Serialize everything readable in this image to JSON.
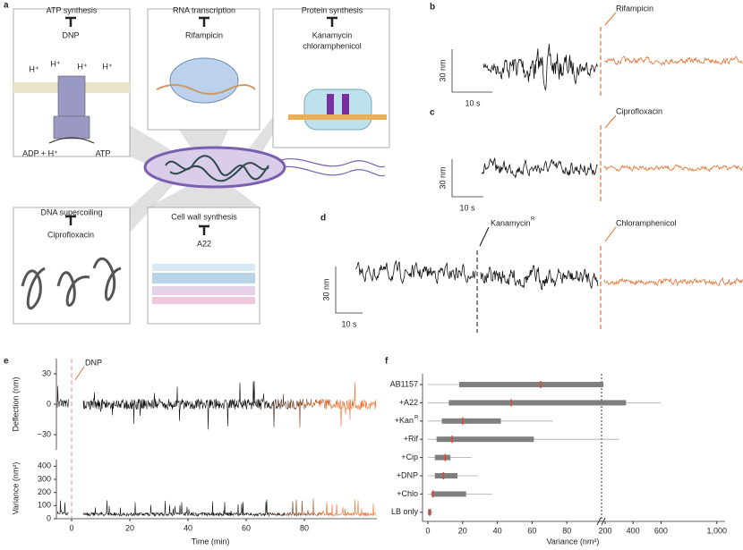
{
  "panel_a": {
    "label": "a",
    "atp": {
      "title": "ATP synthesis",
      "drug": "DNP",
      "proton": "H⁺",
      "reactants": "ADP + H⁺",
      "product": "ATP"
    },
    "rna": {
      "title": "RNA transcription",
      "drug": "Rifampicin"
    },
    "protein": {
      "title": "Protein synthesis",
      "drug_1": "Kanamycin",
      "drug_2": "chloramphenicol"
    },
    "dna": {
      "title": "DNA supercoiling",
      "drug": "Ciprofloxacin"
    },
    "wall": {
      "title": "Cell wall synthesis",
      "drug": "A22"
    }
  },
  "panel_b": {
    "label": "b",
    "scale_y": "30 nm",
    "scale_x": "10 s",
    "drug": "Rifampicin"
  },
  "panel_c": {
    "label": "c",
    "scale_y": "30 nm",
    "scale_x": "10 s",
    "drug": "Ciprofloxacin"
  },
  "panel_d": {
    "label": "d",
    "scale_y": "30 nm",
    "scale_x": "10 s",
    "drug_1": "Kanamycin",
    "drug_1_sup": "R",
    "drug_2": "Chloramphenicol"
  },
  "panel_e": {
    "label": "e",
    "drug": "DNP",
    "xlabel": "Time (min)",
    "xlim": [
      -5,
      105
    ],
    "xticks": [
      0,
      20,
      40,
      60,
      80
    ],
    "deflection": {
      "ylabel": "Deflection (nm)",
      "ylim": [
        -45,
        45
      ],
      "yticks": [
        30,
        0,
        {
          "value": -30,
          "label": "−30"
        }
      ]
    },
    "variance": {
      "ylabel": "Variance (nm²)",
      "ylim": [
        0,
        450
      ],
      "yticks": [
        0,
        100,
        200,
        300,
        400
      ]
    }
  },
  "panel_f": {
    "label": "f",
    "type": "box",
    "xlabel": "Variance (nm²)",
    "box_color": "#7f7f7f",
    "median_color": "#e8452c",
    "categories": [
      "AB1157",
      "+A22",
      "+Kan",
      "+Rif",
      "+Cip",
      "+DNP",
      "+Chlo",
      "LB only"
    ],
    "kan_superscript": "R",
    "xticks": [
      0,
      20,
      40,
      60,
      80,
      200,
      400,
      600,
      {
        "value": 1000,
        "label": "1,000"
      }
    ],
    "boxes": [
      {
        "whisker_low": 0,
        "q1": 18,
        "median": 65,
        "q3": 150,
        "whisker_high": 180
      },
      {
        "whisker_low": 0,
        "q1": 12,
        "median": 48,
        "q3": 350,
        "whisker_high": 600
      },
      {
        "whisker_low": 0,
        "q1": 8,
        "median": 20,
        "q3": 42,
        "whisker_high": 72
      },
      {
        "whisker_low": 0,
        "q1": 5,
        "median": 14,
        "q3": 61,
        "whisker_high": 300
      },
      {
        "whisker_low": 0,
        "q1": 4,
        "median": 10,
        "q3": 13,
        "whisker_high": 25
      },
      {
        "whisker_low": 0,
        "q1": 4,
        "median": 9,
        "q3": 17,
        "whisker_high": 29
      },
      {
        "whisker_low": 0,
        "q1": 2,
        "median": 3,
        "q3": 22,
        "whisker_high": 37
      },
      {
        "whisker_low": 0,
        "q1": 0,
        "median": 1,
        "q3": 2,
        "whisker_high": 3
      }
    ]
  }
}
